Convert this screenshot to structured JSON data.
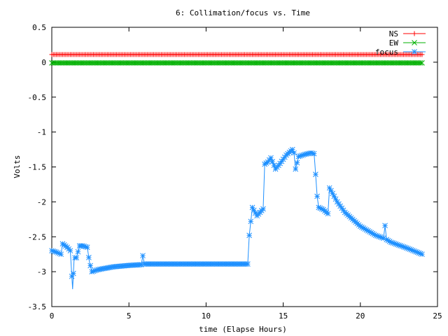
{
  "chart_data": {
    "type": "line",
    "title": "6: Collimation/focus vs. Time",
    "xlabel": "time (Elapse Hours)",
    "ylabel": "Volts",
    "xlim": [
      0,
      25
    ],
    "ylim": [
      -3.5,
      0.5
    ],
    "x_ticks": [
      "0",
      "5",
      "10",
      "15",
      "20",
      "25"
    ],
    "y_ticks": [
      "0.5",
      "0",
      "-0.5",
      "-1",
      "-1.5",
      "-2",
      "-2.5",
      "-3",
      "-3.5"
    ],
    "legend_position": "top-right",
    "grid": false,
    "series": [
      {
        "name": "NS",
        "color": "#ff0000",
        "marker": "plus",
        "x": [
          0,
          24
        ],
        "y": [
          0.11,
          0.11
        ]
      },
      {
        "name": "EW",
        "color": "#00b000",
        "marker": "cross",
        "x": [
          0,
          24
        ],
        "y": [
          -0.01,
          -0.01
        ]
      },
      {
        "name": "focus",
        "color": "#1e90ff",
        "marker": "star",
        "x": [
          0,
          0.3,
          0.6,
          0.7,
          1.0,
          1.2,
          1.35,
          1.45,
          1.6,
          1.8,
          2.0,
          2.3,
          2.45,
          2.6,
          3.0,
          4.0,
          5.0,
          5.8,
          5.9,
          6.0,
          8.0,
          10.0,
          12.0,
          12.7,
          12.8,
          13.0,
          13.3,
          13.7,
          13.8,
          14.0,
          14.1,
          14.2,
          14.5,
          14.8,
          15.2,
          15.6,
          15.7,
          15.8,
          16.0,
          16.4,
          16.8,
          17.0,
          17.05,
          17.2,
          17.3,
          17.6,
          17.9,
          18.0,
          18.5,
          19.0,
          20.0,
          21.0,
          21.5,
          21.6,
          21.7,
          22.0,
          23.0,
          24.0
        ],
        "y": [
          -2.7,
          -2.72,
          -2.75,
          -2.6,
          -2.65,
          -2.7,
          -3.25,
          -2.8,
          -2.8,
          -2.63,
          -2.63,
          -2.65,
          -2.87,
          -3.0,
          -2.97,
          -2.93,
          -2.91,
          -2.9,
          -2.77,
          -2.89,
          -2.89,
          -2.89,
          -2.89,
          -2.89,
          -2.48,
          -2.08,
          -2.2,
          -2.1,
          -1.46,
          -1.43,
          -1.4,
          -1.37,
          -1.53,
          -1.45,
          -1.33,
          -1.25,
          -1.3,
          -1.53,
          -1.35,
          -1.32,
          -1.3,
          -1.31,
          -1.45,
          -1.92,
          -2.08,
          -2.11,
          -2.17,
          -1.8,
          -2.0,
          -2.15,
          -2.35,
          -2.48,
          -2.52,
          -2.34,
          -2.54,
          -2.58,
          -2.66,
          -2.75
        ]
      }
    ]
  }
}
